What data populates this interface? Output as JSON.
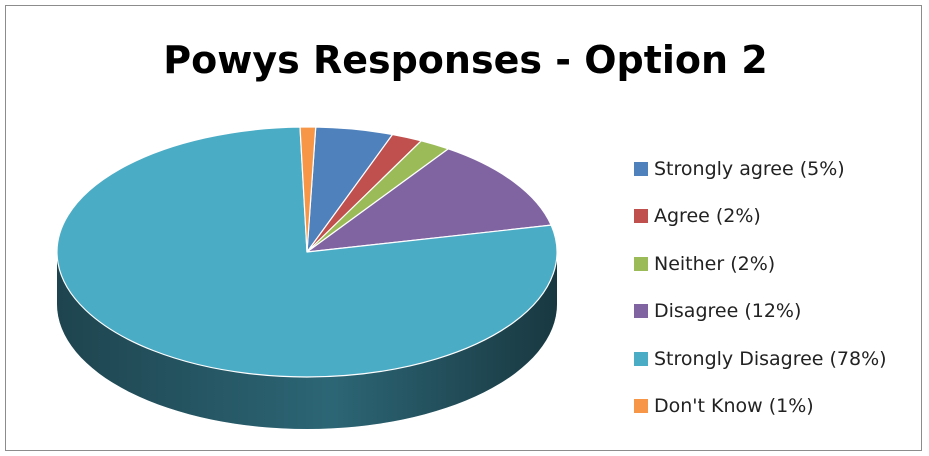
{
  "chart_data": {
    "type": "pie",
    "title": "Powys Responses - Option 2",
    "style": "3d",
    "legend_position": "right",
    "slices": [
      {
        "label": "Strongly agree (5%)",
        "value": 5,
        "color": "#4f81bd"
      },
      {
        "label": "Agree (2%)",
        "value": 2,
        "color": "#c0504d"
      },
      {
        "label": "Neither (2%)",
        "value": 2,
        "color": "#9bbb59"
      },
      {
        "label": "Disagree (12%)",
        "value": 12,
        "color": "#8064a2"
      },
      {
        "label": "Strongly Disagree (78%)",
        "value": 78,
        "color": "#4bacc6"
      },
      {
        "label": "Don't Know (1%)",
        "value": 1,
        "color": "#f79646"
      }
    ]
  }
}
